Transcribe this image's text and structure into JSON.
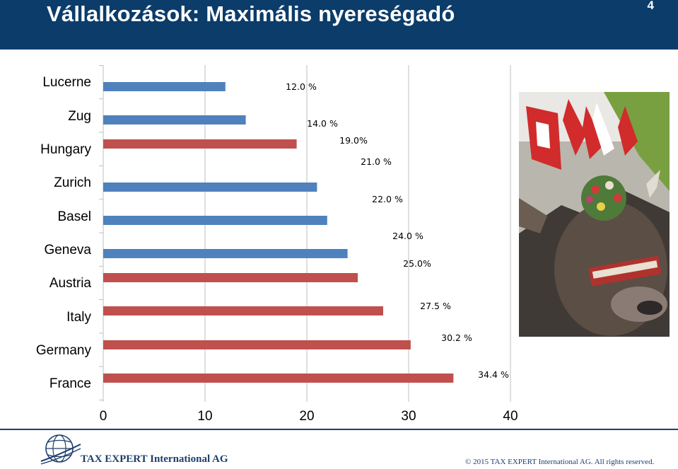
{
  "header": {
    "title": "Vállalkozások: Maximális nyereségadó",
    "page_number": "4"
  },
  "footer": {
    "company": "TAX EXPERT International AG",
    "copyright": "© 2015 TAX EXPERT International AG. All rights reserved."
  },
  "colors": {
    "header_bg": "#0b3c6a",
    "swiss_bar": "#4f81bd",
    "other_bar": "#c0504d"
  },
  "chart_data": {
    "type": "bar",
    "orientation": "horizontal",
    "title": "",
    "xlabel": "",
    "ylabel": "",
    "xlim": [
      0,
      40
    ],
    "xticks": [
      "0",
      "10",
      "20",
      "30",
      "40"
    ],
    "grid": "vertical",
    "categories": [
      "Lucerne",
      "Zug",
      "Hungary",
      "Zurich",
      "Basel",
      "Geneva",
      "Austria",
      "Italy",
      "Germany",
      "France"
    ],
    "values": [
      12.0,
      14.0,
      19.0,
      21.0,
      22.0,
      24.0,
      25.0,
      27.5,
      30.2,
      34.4
    ],
    "data_labels": [
      "12.0 %",
      "14.0 %",
      "19.0%",
      "21.0 %",
      "22.0  %",
      "24.0 %",
      "25.0%",
      "27.5 %",
      "30.2 %",
      "34.4 %"
    ],
    "bar_colors": [
      "#4f81bd",
      "#4f81bd",
      "#c0504d",
      "#4f81bd",
      "#4f81bd",
      "#4f81bd",
      "#c0504d",
      "#c0504d",
      "#c0504d",
      "#c0504d"
    ]
  }
}
